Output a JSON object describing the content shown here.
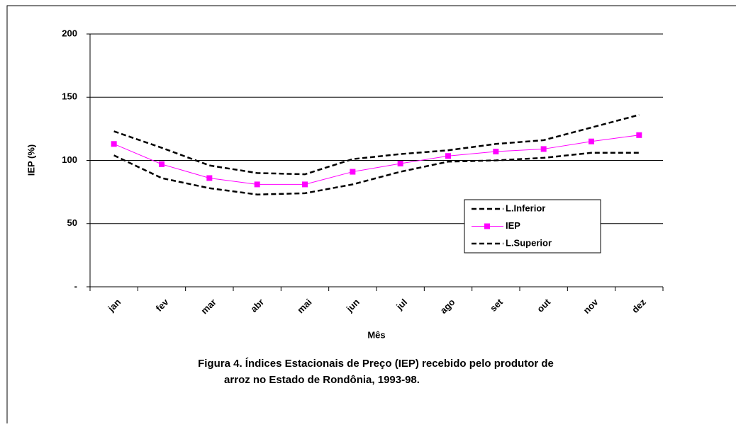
{
  "chart_data": {
    "type": "line",
    "title": [
      "Figura 4. Índices Estacionais de Preço (IEP) recebido pelo produtor de",
      "arroz  no Estado de Rondônia, 1993-98."
    ],
    "x_label": "Mês",
    "y_label": "IEP (%)",
    "categories": [
      "jan",
      "fev",
      "mar",
      "abr",
      "mai",
      "jun",
      "jul",
      "ago",
      "set",
      "out",
      "nov",
      "dez"
    ],
    "series": [
      {
        "name": "L.Inferior",
        "color": "#000000",
        "style": "dashed",
        "marker": "none",
        "values": [
          104,
          86,
          78,
          73,
          74,
          81,
          91,
          99,
          100,
          102,
          106,
          106
        ]
      },
      {
        "name": "IEP",
        "color": "#ff00ff",
        "style": "solid",
        "marker": "square",
        "values": [
          113,
          97,
          86,
          81,
          81,
          91,
          97.5,
          103.5,
          107,
          109,
          115,
          120
        ]
      },
      {
        "name": "L.Superior",
        "color": "#000000",
        "style": "dashed",
        "marker": "none",
        "values": [
          123,
          110,
          96,
          90,
          89,
          101,
          105,
          108,
          113,
          116,
          126,
          136
        ]
      }
    ],
    "ylim": [
      0,
      200
    ],
    "yticks": [
      {
        "value": 0,
        "label": "-"
      },
      50,
      100,
      150,
      200
    ],
    "grid": true,
    "legend": "right"
  }
}
